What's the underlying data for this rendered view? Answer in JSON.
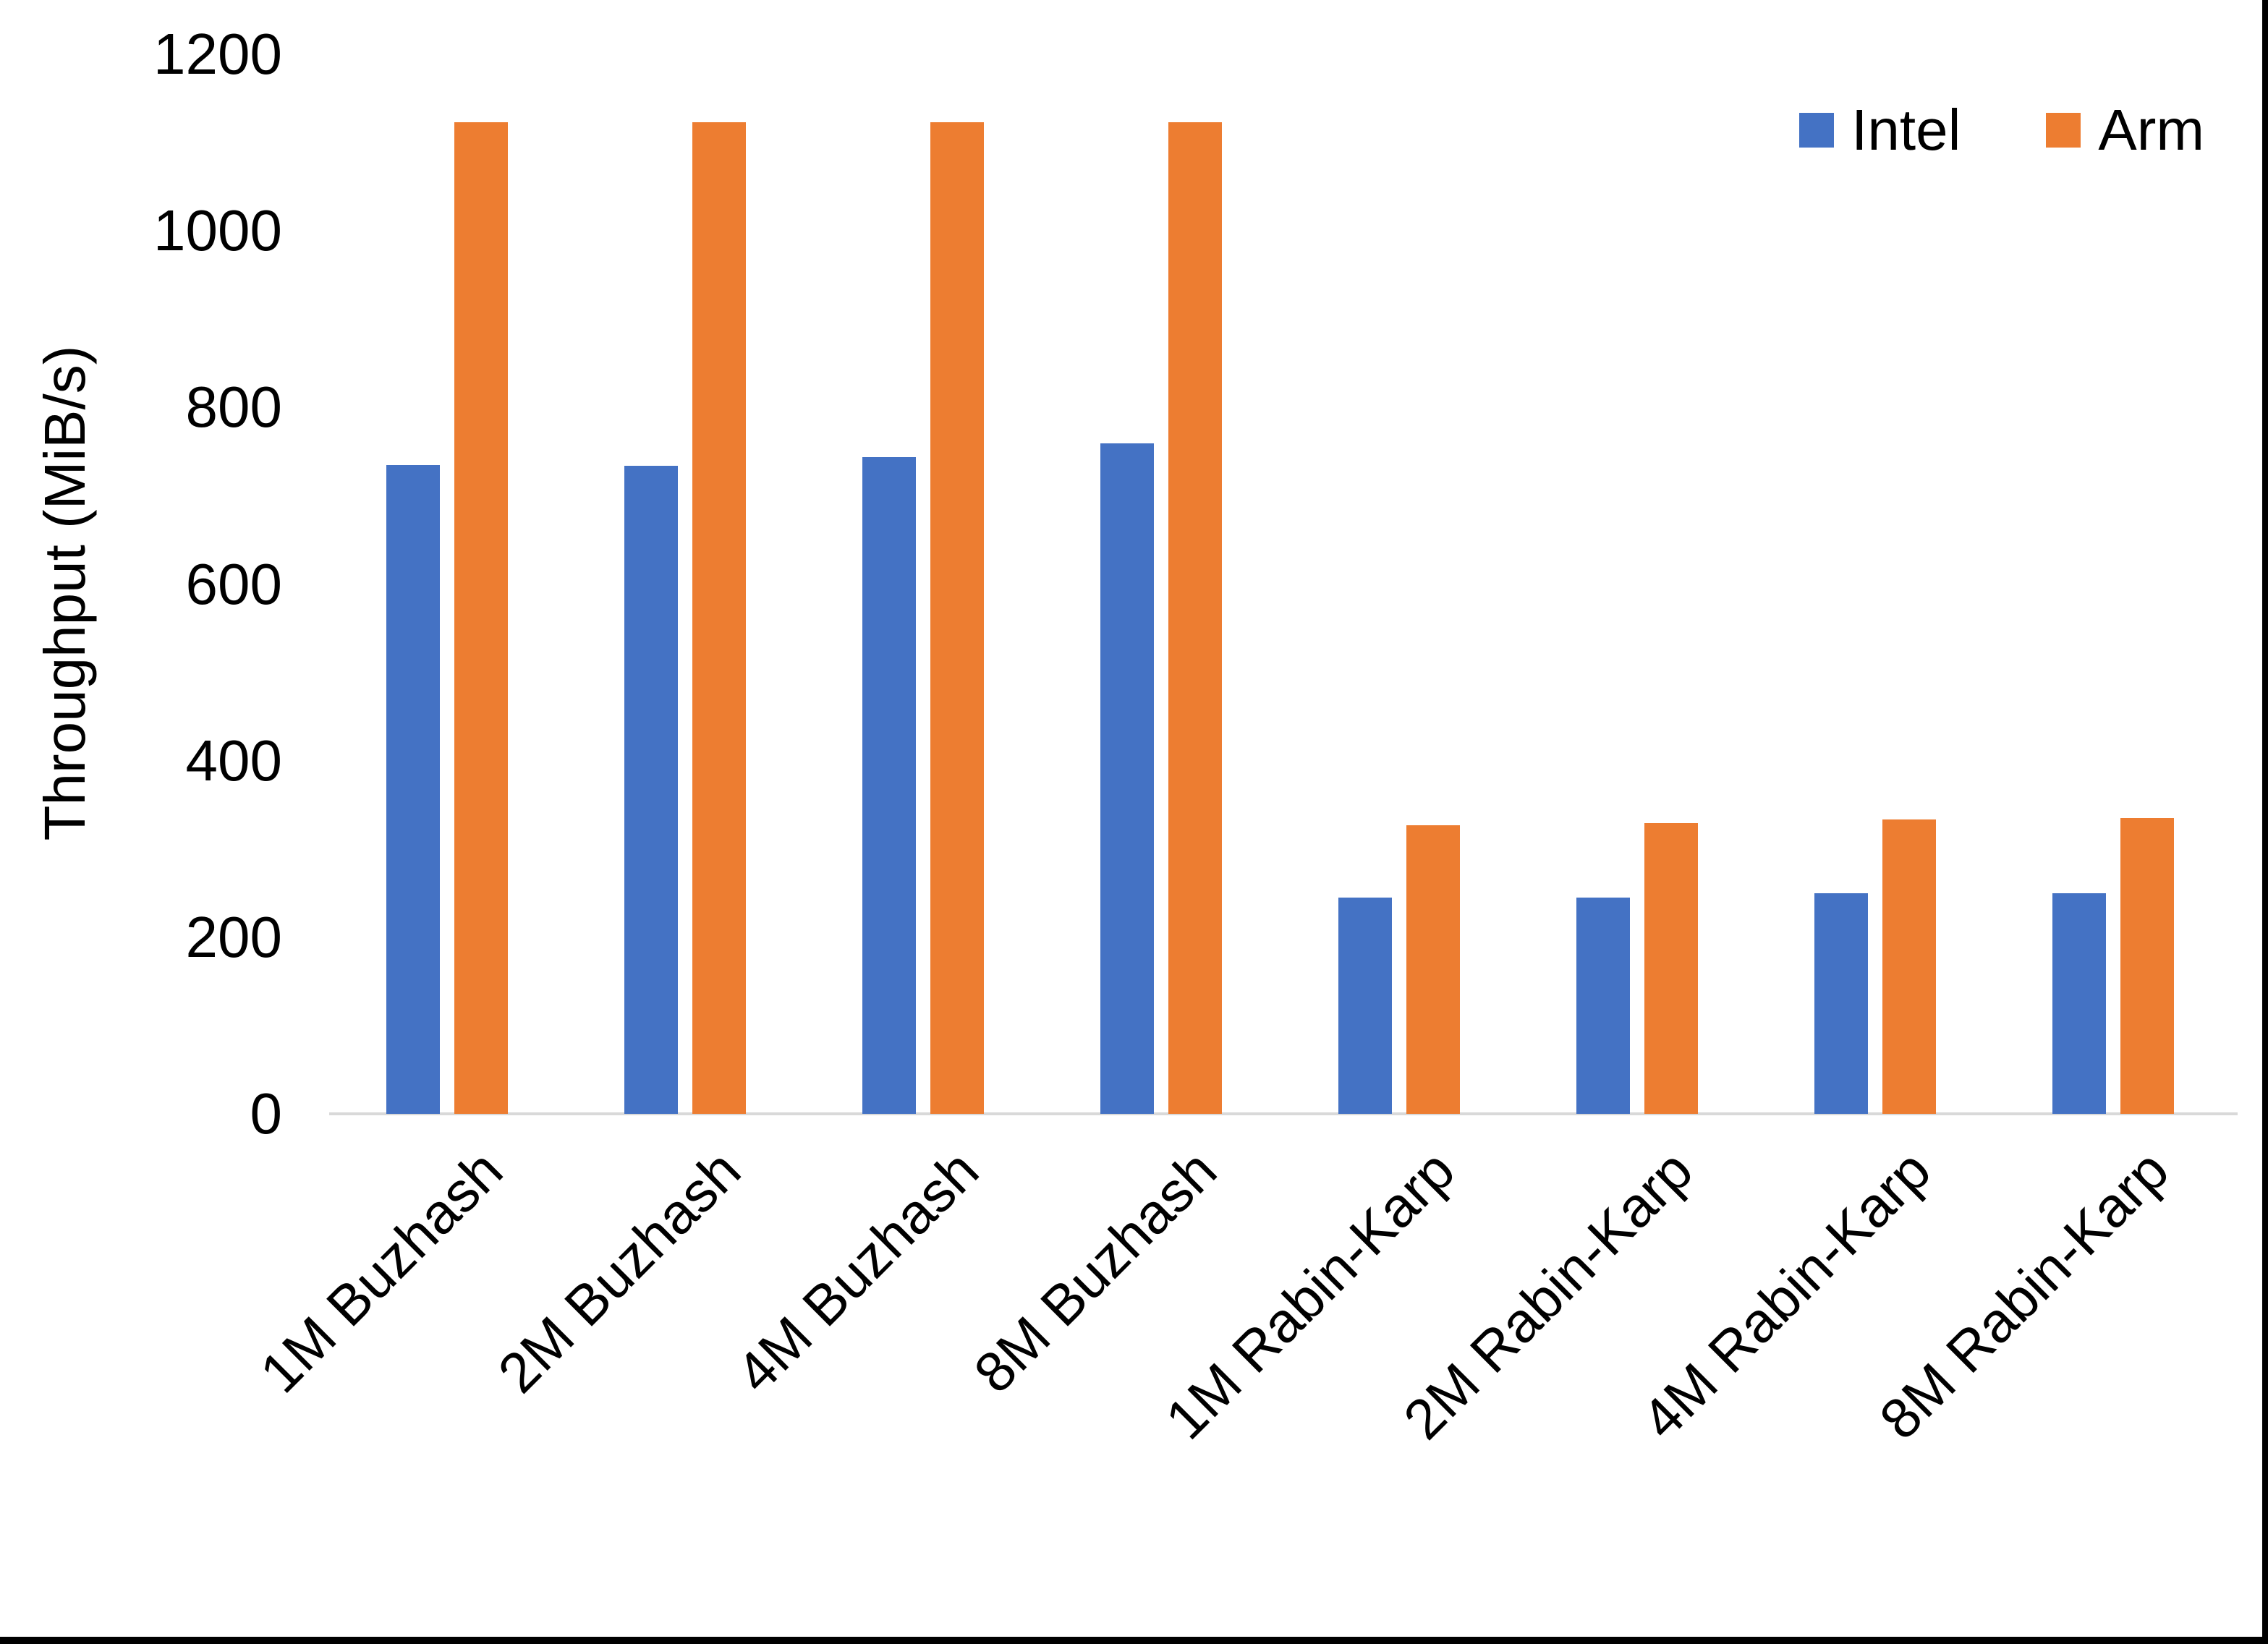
{
  "chart_data": {
    "type": "bar",
    "title": "",
    "xlabel": "",
    "ylabel": "Throughput (MiB/s)",
    "ylim": [
      0,
      1200
    ],
    "yticks": [
      0,
      200,
      400,
      600,
      800,
      1000,
      1200
    ],
    "grid": false,
    "legend_position": "top-right",
    "categories": [
      "1M Buzhash",
      "2M Buzhash",
      "4M Buzhash",
      "8M Buzhash",
      "1M Rabin-Karp",
      "2M Rabin-Karp",
      "4M Rabin-Karp",
      "8M Rabin-Karp"
    ],
    "series": [
      {
        "name": "Intel",
        "color": "#4472C4",
        "values": [
          735,
          734,
          744,
          759,
          245,
          245,
          250,
          250
        ]
      },
      {
        "name": "Arm",
        "color": "#ED7D31",
        "values": [
          1123,
          1123,
          1123,
          1123,
          327,
          329,
          333,
          335
        ]
      }
    ],
    "axis_line_color": "#D9D9D9",
    "text_color": "#000000"
  }
}
